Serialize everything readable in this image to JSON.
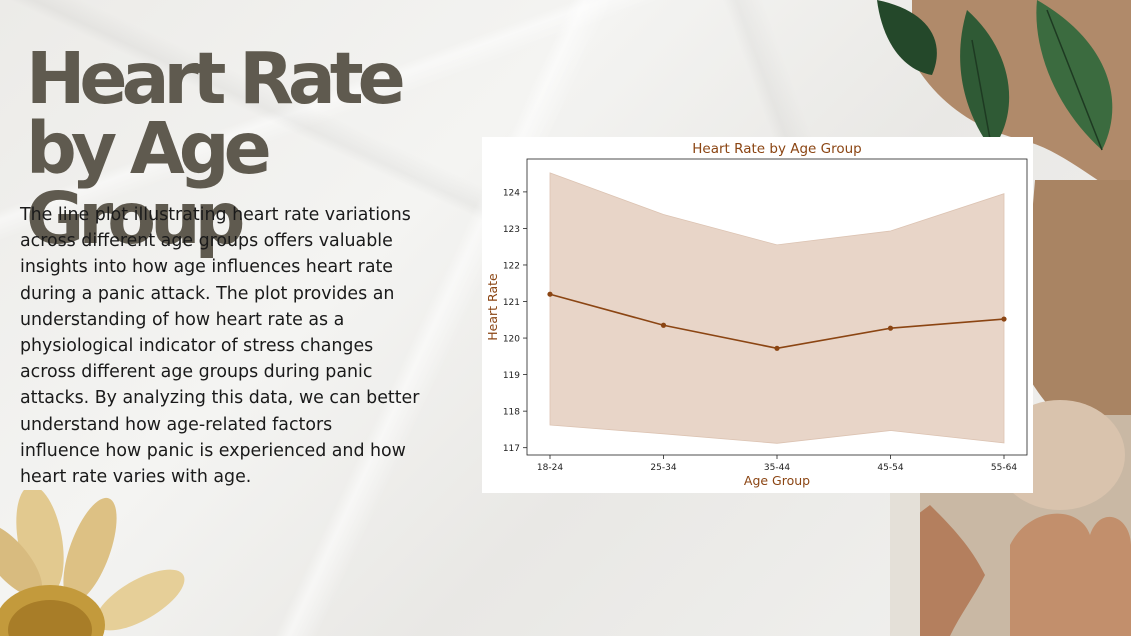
{
  "slide": {
    "title": "Heart Rate by Age Group",
    "body": "The line plot illustrating heart rate variations\nacross different age groups offers valuable\ninsights into how age influences heart rate\nduring a panic attack.  The plot provides an\nunderstanding of how heart rate as a\nphysiological indicator of stress changes\nacross different age groups during panic\nattacks. By analyzing this data, we can better\nunderstand how age-related factors\ninfluence how panic is experienced and how\nheart rate varies with age."
  },
  "colors": {
    "title": "#5f5a4f",
    "chart_text": "#8b4513",
    "line": "#8b4513",
    "band": "#e8d5c8"
  },
  "decorations": [
    "leaf-branch",
    "torn-kraft-paper",
    "dried-daisy",
    "hands-heart-photo",
    "newspaper-scrap"
  ],
  "chart_data": {
    "type": "line",
    "title": "Heart Rate by Age Group",
    "xlabel": "Age Group",
    "ylabel": "Heart Rate",
    "categories": [
      "18-24",
      "25-34",
      "35-44",
      "45-54",
      "55-64"
    ],
    "series": [
      {
        "values": [
          121.2,
          120.35,
          119.72,
          120.27,
          120.52
        ],
        "ci_lower": [
          117.62,
          117.38,
          117.12,
          117.47,
          117.13
        ],
        "ci_upper": [
          124.52,
          123.38,
          122.55,
          122.93,
          123.95
        ]
      }
    ],
    "ylim": [
      116.8,
      124.9
    ],
    "yticks": [
      117,
      118,
      119,
      120,
      121,
      122,
      123,
      124
    ],
    "grid": false,
    "legend": "none"
  }
}
